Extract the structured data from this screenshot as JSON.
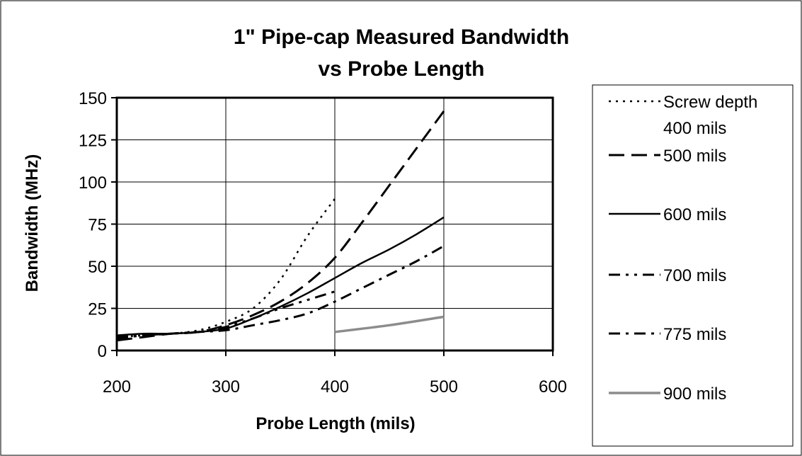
{
  "chart_data": {
    "type": "line",
    "title": "1\" Pipe-cap Measured Bandwidth",
    "subtitle": "vs Probe Length",
    "xlabel": "Probe Length (mils)",
    "ylabel": "Bandwidth (MHz)",
    "xlim": [
      200,
      600
    ],
    "ylim": [
      0,
      150
    ],
    "xticks": [
      "200",
      "300",
      "400",
      "500",
      "600"
    ],
    "yticks": [
      "0",
      "25",
      "50",
      "75",
      "100",
      "125",
      "150"
    ],
    "grid": true,
    "legend_position": "right",
    "series": [
      {
        "name": "Screw depth 400 mils",
        "legend_lines": [
          "Screw depth",
          "400 mils"
        ],
        "style": "dotted",
        "color": "#000000",
        "points": [
          [
            200,
            8
          ],
          [
            225,
            9
          ],
          [
            250,
            10
          ],
          [
            275,
            12
          ],
          [
            300,
            17
          ],
          [
            325,
            25
          ],
          [
            350,
            42
          ],
          [
            375,
            68
          ],
          [
            400,
            90
          ]
        ]
      },
      {
        "name": "500 mils",
        "legend_lines": [
          "500 mils"
        ],
        "style": "dashed",
        "color": "#000000",
        "points": [
          [
            200,
            6
          ],
          [
            225,
            8
          ],
          [
            250,
            10
          ],
          [
            275,
            11
          ],
          [
            300,
            15
          ],
          [
            325,
            21
          ],
          [
            350,
            29
          ],
          [
            375,
            40
          ],
          [
            400,
            55
          ],
          [
            425,
            76
          ],
          [
            450,
            98
          ],
          [
            475,
            120
          ],
          [
            500,
            142
          ]
        ]
      },
      {
        "name": "600 mils",
        "legend_lines": [
          "600 mils"
        ],
        "style": "solid",
        "color": "#000000",
        "points": [
          [
            200,
            9
          ],
          [
            225,
            10
          ],
          [
            250,
            10
          ],
          [
            275,
            11
          ],
          [
            300,
            13
          ],
          [
            325,
            19
          ],
          [
            350,
            26
          ],
          [
            375,
            34
          ],
          [
            400,
            43
          ],
          [
            425,
            52
          ],
          [
            450,
            60
          ],
          [
            475,
            69
          ],
          [
            500,
            79
          ]
        ]
      },
      {
        "name": "700 mils",
        "legend_lines": [
          "700 mils"
        ],
        "style": "dash-dot-dot",
        "color": "#000000",
        "points": [
          [
            200,
            7
          ],
          [
            225,
            9
          ],
          [
            250,
            10
          ],
          [
            275,
            11
          ],
          [
            300,
            14
          ],
          [
            325,
            19
          ],
          [
            350,
            25
          ],
          [
            375,
            30
          ],
          [
            400,
            35
          ]
        ]
      },
      {
        "name": "775 mils",
        "legend_lines": [
          "775 mils"
        ],
        "style": "dash-dot",
        "color": "#000000",
        "points": [
          [
            200,
            8
          ],
          [
            225,
            9
          ],
          [
            250,
            10
          ],
          [
            275,
            11
          ],
          [
            300,
            12
          ],
          [
            325,
            15
          ],
          [
            350,
            18
          ],
          [
            375,
            22
          ],
          [
            400,
            29
          ],
          [
            425,
            37
          ],
          [
            450,
            45
          ],
          [
            475,
            53
          ],
          [
            500,
            62
          ]
        ]
      },
      {
        "name": "900 mils",
        "legend_lines": [
          "900 mils"
        ],
        "style": "solid-gray",
        "color": "#8c8c8c",
        "points": [
          [
            400,
            11
          ],
          [
            450,
            15
          ],
          [
            500,
            20
          ]
        ]
      }
    ]
  }
}
